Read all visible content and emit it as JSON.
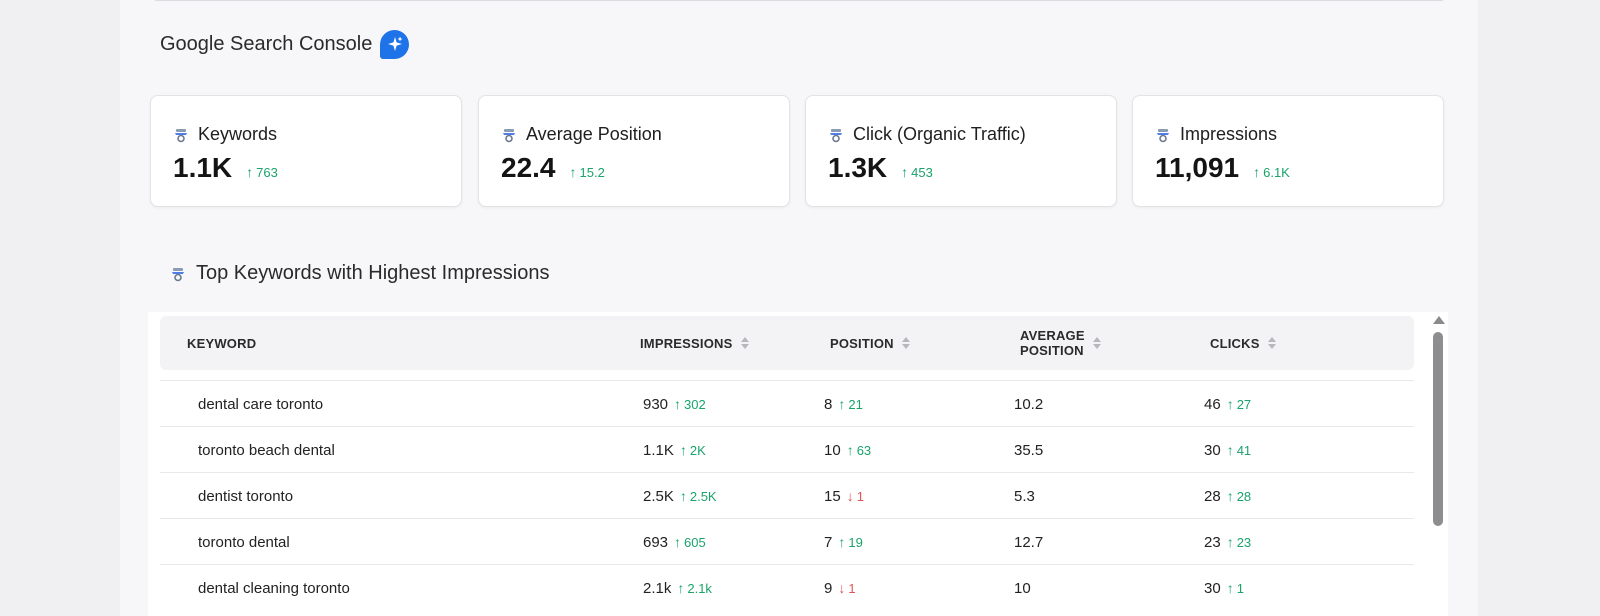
{
  "section": {
    "title": "Google Search Console",
    "badge_icon": "ai-sparkle-icon",
    "accent": "#1f73e8"
  },
  "cards": [
    {
      "label": "Keywords",
      "value": "1.1K",
      "delta": "763",
      "direction": "up"
    },
    {
      "label": "Average Position",
      "value": "22.4",
      "delta": "15.2",
      "direction": "up"
    },
    {
      "label": "Click (Organic Traffic)",
      "value": "1.3K",
      "delta": "453",
      "direction": "up"
    },
    {
      "label": "Impressions",
      "value": "11,091",
      "delta": "6.1K",
      "direction": "up"
    }
  ],
  "table": {
    "title": "Top Keywords with Highest Impressions",
    "columns": {
      "keyword": "KEYWORD",
      "impressions": "IMPRESSIONS",
      "position": "POSITION",
      "avg_position_line1": "AVERAGE",
      "avg_position_line2": "POSITION",
      "clicks": "CLICKS"
    },
    "rows": [
      {
        "keyword": "dental care toronto",
        "impressions": "930",
        "impressions_delta": "302",
        "impressions_dir": "up",
        "position": "8",
        "position_delta": "21",
        "position_dir": "up",
        "avg_position": "10.2",
        "clicks": "46",
        "clicks_delta": "27",
        "clicks_dir": "up"
      },
      {
        "keyword": "toronto beach dental",
        "impressions": "1.1K",
        "impressions_delta": "2K",
        "impressions_dir": "up",
        "position": "10",
        "position_delta": "63",
        "position_dir": "up",
        "avg_position": "35.5",
        "clicks": "30",
        "clicks_delta": "41",
        "clicks_dir": "up"
      },
      {
        "keyword": "dentist toronto",
        "impressions": "2.5K",
        "impressions_delta": "2.5K",
        "impressions_dir": "up",
        "position": "15",
        "position_delta": "1",
        "position_dir": "down",
        "avg_position": "5.3",
        "clicks": "28",
        "clicks_delta": "28",
        "clicks_dir": "up"
      },
      {
        "keyword": "toronto dental",
        "impressions": "693",
        "impressions_delta": "605",
        "impressions_dir": "up",
        "position": "7",
        "position_delta": "19",
        "position_dir": "up",
        "avg_position": "12.7",
        "clicks": "23",
        "clicks_delta": "23",
        "clicks_dir": "up"
      },
      {
        "keyword": "dental cleaning toronto",
        "impressions": "2.1k",
        "impressions_delta": "2.1k",
        "impressions_dir": "up",
        "position": "9",
        "position_delta": "1",
        "position_dir": "down",
        "avg_position": "10",
        "clicks": "30",
        "clicks_delta": "1",
        "clicks_dir": "up"
      }
    ]
  },
  "colors": {
    "up": "#1aa36a",
    "down": "#e05555"
  },
  "icons": {
    "card_icon": "search-console-icon",
    "sort_icon": "sort-icon"
  }
}
